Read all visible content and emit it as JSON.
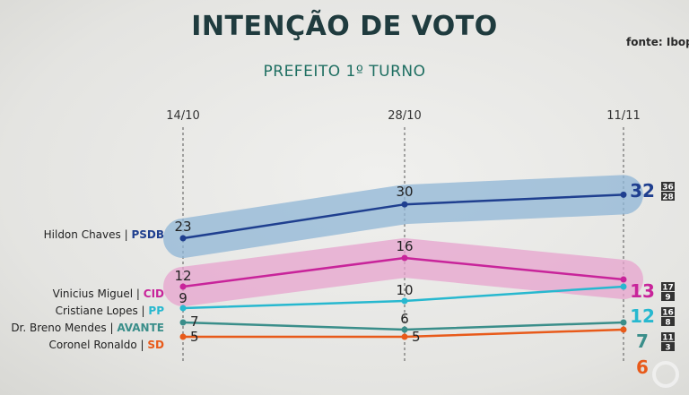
{
  "title": "INTENÇÃO DE VOTO",
  "subtitle": "PREFEITO 1º TURNO",
  "source": "fonte: Ibope",
  "chart_data": {
    "type": "line",
    "x": [
      "14/10",
      "28/10",
      "11/11"
    ],
    "ylim": [
      0,
      36
    ],
    "grid": false,
    "series": [
      {
        "key": "hildon",
        "name": "Hildon Chaves",
        "party": "PSDB",
        "color": "#1f3f8f",
        "band": "#8fb6d6",
        "values": [
          23,
          30,
          32
        ],
        "margin": [
          36,
          28
        ]
      },
      {
        "key": "vinicius",
        "name": "Vinicius Miguel",
        "party": "CID",
        "color": "#c8249a",
        "band": "#e7a3cd",
        "values": [
          12,
          16,
          13
        ],
        "margin": [
          17,
          9
        ]
      },
      {
        "key": "cristiane",
        "name": "Cristiane Lopes",
        "party": "PP",
        "color": "#27b8cf",
        "band": null,
        "values": [
          9,
          10,
          12
        ],
        "margin": [
          16,
          8
        ]
      },
      {
        "key": "breno",
        "name": "Dr. Breno Mendes",
        "party": "AVANTE",
        "color": "#3a8e8a",
        "band": null,
        "values": [
          7,
          6,
          7
        ],
        "margin": [
          11,
          3
        ]
      },
      {
        "key": "ronaldo",
        "name": "Coronel Ronaldo",
        "party": "SD",
        "color": "#e85a1a",
        "band": null,
        "values": [
          5,
          5,
          6
        ],
        "margin": []
      }
    ]
  }
}
